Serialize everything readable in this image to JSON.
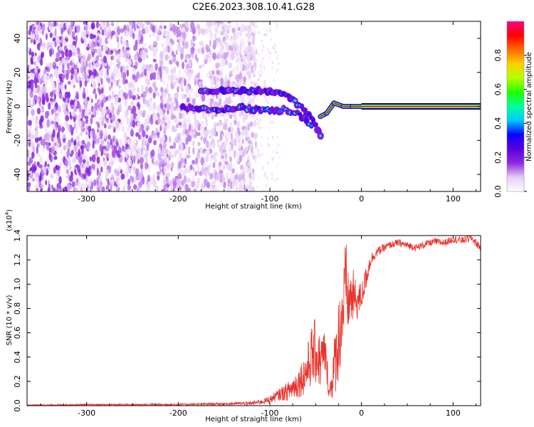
{
  "figure_title": "C2E6.2023.308.10.41.G28",
  "chart_data": [
    {
      "type": "heatmap",
      "title": "C2E6.2023.308.10.41.G28",
      "xlabel": "Height of straight line (km)",
      "ylabel": "Frequency (Hz)",
      "xlim": [
        -365,
        130
      ],
      "ylim": [
        -50,
        50
      ],
      "xticks": [
        -300,
        -200,
        -100,
        0,
        100
      ],
      "yticks": [
        -40,
        -20,
        0,
        20,
        40
      ],
      "colorbar": {
        "label": "Normalized spectral amplitude",
        "range": [
          0.0,
          1.0
        ],
        "ticks": [
          "0.0",
          "0.2",
          "0.4",
          "0.6",
          "0.8"
        ],
        "colors": [
          "#ffffff",
          "#e6ccf5",
          "#8f2ae0",
          "#5a00e0",
          "#0a00ff",
          "#00c8ff",
          "#00ff9f",
          "#22ff00",
          "#b4ff00",
          "#ffd000",
          "#ff6a00",
          "#ff0000",
          "#ff0080"
        ]
      },
      "features": {
        "noise_floor_region_x": [
          -365,
          -115
        ],
        "faint_noise_region_x": [
          -115,
          -90
        ],
        "trace_upper": [
          [
            -175,
            9
          ],
          [
            -150,
            9
          ],
          [
            -125,
            9
          ],
          [
            -105,
            9
          ],
          [
            -85,
            8
          ],
          [
            -75,
            4
          ],
          [
            -65,
            -1
          ],
          [
            -55,
            -6
          ],
          [
            -48,
            -13
          ],
          [
            -43,
            -20
          ]
        ],
        "trace_lower": [
          [
            -195,
            -1
          ],
          [
            -160,
            -2
          ],
          [
            -130,
            -1
          ],
          [
            -110,
            -2
          ],
          [
            -95,
            -3
          ],
          [
            -85,
            -2
          ],
          [
            -70,
            -4
          ],
          [
            -60,
            -8
          ],
          [
            -52,
            -14
          ]
        ],
        "converging_line": [
          [
            -45,
            -6
          ],
          [
            -38,
            -4
          ],
          [
            -30,
            2
          ],
          [
            -20,
            0
          ],
          [
            -10,
            0
          ],
          [
            0,
            0
          ]
        ],
        "steady_tone_x": [
          0,
          130
        ],
        "steady_tone_freq": 0
      }
    },
    {
      "type": "line",
      "xlabel": "Height of straight line (km)",
      "ylabel": "SNR (10 * v/v)",
      "multiplier": "(x10",
      "multiplier_exp": "4",
      "xlim": [
        -365,
        130
      ],
      "ylim": [
        0,
        1.4
      ],
      "xticks": [
        -300,
        -200,
        -100,
        0,
        100
      ],
      "yticks": [
        "0.0",
        "0.2",
        "0.4",
        "0.6",
        "0.8",
        "1.0",
        "1.2",
        "1.4"
      ],
      "series": [
        {
          "color": "#e8312a",
          "x": [
            -365,
            -300,
            -200,
            -150,
            -120,
            -110,
            -100,
            -90,
            -80,
            -70,
            -60,
            -55,
            -50,
            -45,
            -40,
            -35,
            -30,
            -25,
            -20,
            -17,
            -15,
            -10,
            -5,
            0,
            5,
            10,
            15,
            20,
            25,
            30,
            40,
            50,
            60,
            70,
            80,
            90,
            100,
            110,
            120,
            130
          ],
          "y": [
            0.005,
            0.008,
            0.01,
            0.015,
            0.02,
            0.03,
            0.05,
            0.09,
            0.12,
            0.18,
            0.28,
            0.4,
            0.45,
            0.35,
            0.45,
            0.1,
            0.3,
            0.55,
            0.8,
            1.0,
            0.85,
            0.9,
            0.85,
            0.9,
            1.05,
            1.2,
            1.25,
            1.28,
            1.3,
            1.32,
            1.34,
            1.32,
            1.3,
            1.33,
            1.35,
            1.34,
            1.37,
            1.36,
            1.38,
            1.3
          ],
          "noise": [
            0.004,
            0.006,
            0.008,
            0.01,
            0.015,
            0.02,
            0.03,
            0.05,
            0.08,
            0.12,
            0.18,
            0.25,
            0.28,
            0.22,
            0.2,
            0.06,
            0.25,
            0.35,
            0.35,
            0.4,
            0.25,
            0.25,
            0.15,
            0.12,
            0.1,
            0.06,
            0.04,
            0.04,
            0.03,
            0.03,
            0.03,
            0.03,
            0.03,
            0.03,
            0.03,
            0.03,
            0.03,
            0.03,
            0.03,
            0.04
          ]
        }
      ]
    }
  ]
}
